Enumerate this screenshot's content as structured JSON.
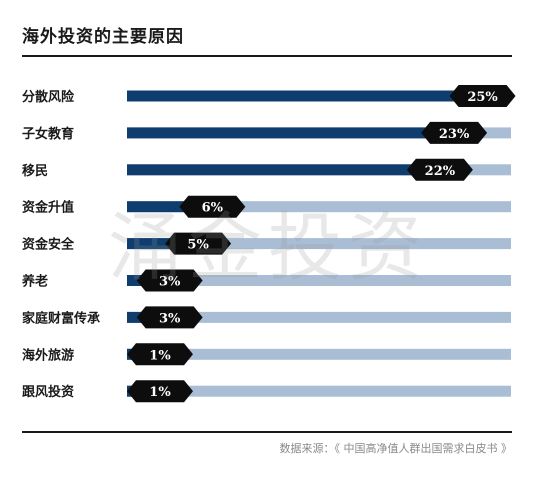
{
  "header": {
    "title": "海外投资的主要原因"
  },
  "footer": {
    "source": "数据来源：《 中国高净值人群出国需求白皮书 》"
  },
  "watermark": {
    "text": "涌金投资"
  },
  "colors": {
    "bar_fill": "#0f3e6e",
    "bar_track": "#a9bdd4",
    "tag_fill": "#0d0d0d",
    "tag_text": "#ffffff"
  },
  "chart_data": {
    "type": "bar",
    "orientation": "horizontal",
    "title": "海外投资的主要原因",
    "categories": [
      "分散风险",
      "子女教育",
      "移民",
      "资金升值",
      "资金安全",
      "养老",
      "家庭财富传承",
      "海外旅游",
      "跟风投资"
    ],
    "values": [
      25,
      23,
      22,
      6,
      5,
      3,
      3,
      1,
      1
    ],
    "value_labels": [
      "25%",
      "23%",
      "22%",
      "6%",
      "5%",
      "3%",
      "3%",
      "1%",
      "1%"
    ],
    "xlim": [
      0,
      27
    ],
    "unit": "%",
    "grid": false,
    "legend": "none"
  }
}
